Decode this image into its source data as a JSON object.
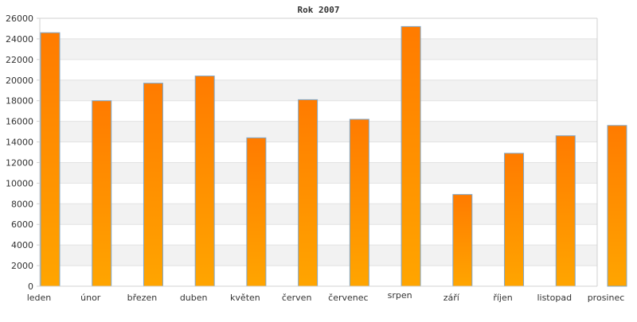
{
  "chart_data": {
    "type": "bar",
    "title": "Rok 2007",
    "xlabel": "",
    "ylabel": "",
    "categories": [
      "leden",
      "únor",
      "březen",
      "duben",
      "květen",
      "červen",
      "červenec",
      "srpen",
      "září",
      "říjen",
      "listopad",
      "prosinec"
    ],
    "values": [
      24600,
      18000,
      19700,
      20400,
      14400,
      18100,
      16200,
      25200,
      8900,
      12900,
      14600,
      15600
    ],
    "ylim": [
      0,
      26000
    ],
    "yticks": [
      0,
      2000,
      4000,
      6000,
      8000,
      10000,
      12000,
      14000,
      16000,
      18000,
      20000,
      22000,
      24000,
      26000
    ],
    "grid": true,
    "band_colors": [
      "#ffffff",
      "#f2f2f2"
    ],
    "bar_gradient": {
      "top": "#ff7b00",
      "bottom": "#ffa500",
      "stroke": "#7fa7c9"
    },
    "axis_color": "#d0d0d0"
  }
}
